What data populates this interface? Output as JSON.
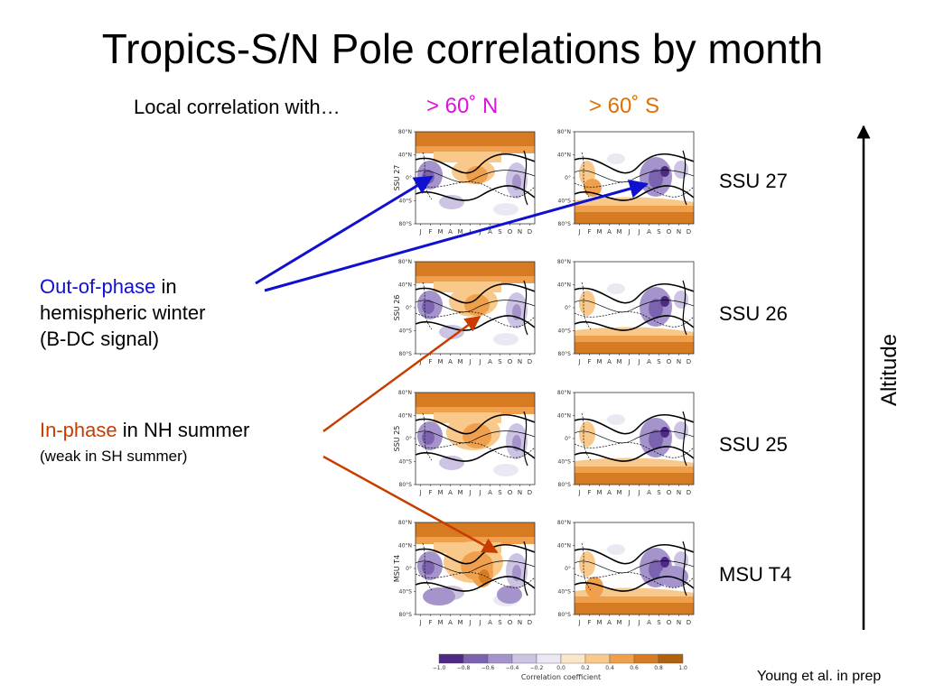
{
  "slide": {
    "title": "Tropics-S/N Pole correlations by month",
    "subtitle": "Local correlation with…",
    "col_n": "> 60˚ N",
    "col_s": "> 60˚ S",
    "row_labels": [
      "SSU 27",
      "SSU 26",
      "SSU 25",
      "MSU T4"
    ],
    "panel_ylabels": [
      "SSU 27",
      "SSU 26",
      "SSU 25",
      "MSU T4"
    ],
    "note_out_of_phase": {
      "highlight": "Out-of-phase",
      "rest1": " in",
      "line2": "hemispheric winter",
      "line3": "(B-DC signal)"
    },
    "note_in_phase": {
      "highlight": "In-phase",
      "rest1": " in NH summer",
      "line2": "(weak in SH summer)"
    },
    "altitude_label": "Altitude",
    "credit": "Young et al. in prep"
  },
  "axes": {
    "lat_ticks": [
      "80°N",
      "40°N",
      "0°",
      "40°S",
      "80°S"
    ],
    "months": [
      "J",
      "F",
      "M",
      "A",
      "M",
      "J",
      "J",
      "A",
      "S",
      "O",
      "N",
      "D"
    ]
  },
  "colorbar": {
    "title": "Correlation coefficient",
    "ticks": [
      "−1.0",
      "−0.8",
      "−0.6",
      "−0.4",
      "−0.2",
      "0.0",
      "0.2",
      "0.4",
      "0.6",
      "0.8",
      "1.0"
    ],
    "colors": [
      "#4e2a84",
      "#7c63b0",
      "#a594cc",
      "#cdc4e4",
      "#ebe7f3",
      "#fbe7c8",
      "#f8c98a",
      "#f0a04c",
      "#d67b21",
      "#b0600f"
    ]
  },
  "colors": {
    "out_of_phase": "#1010d0",
    "in_phase": "#c83c00",
    "col_n": "#e010e0",
    "col_s": "#e07000"
  }
}
